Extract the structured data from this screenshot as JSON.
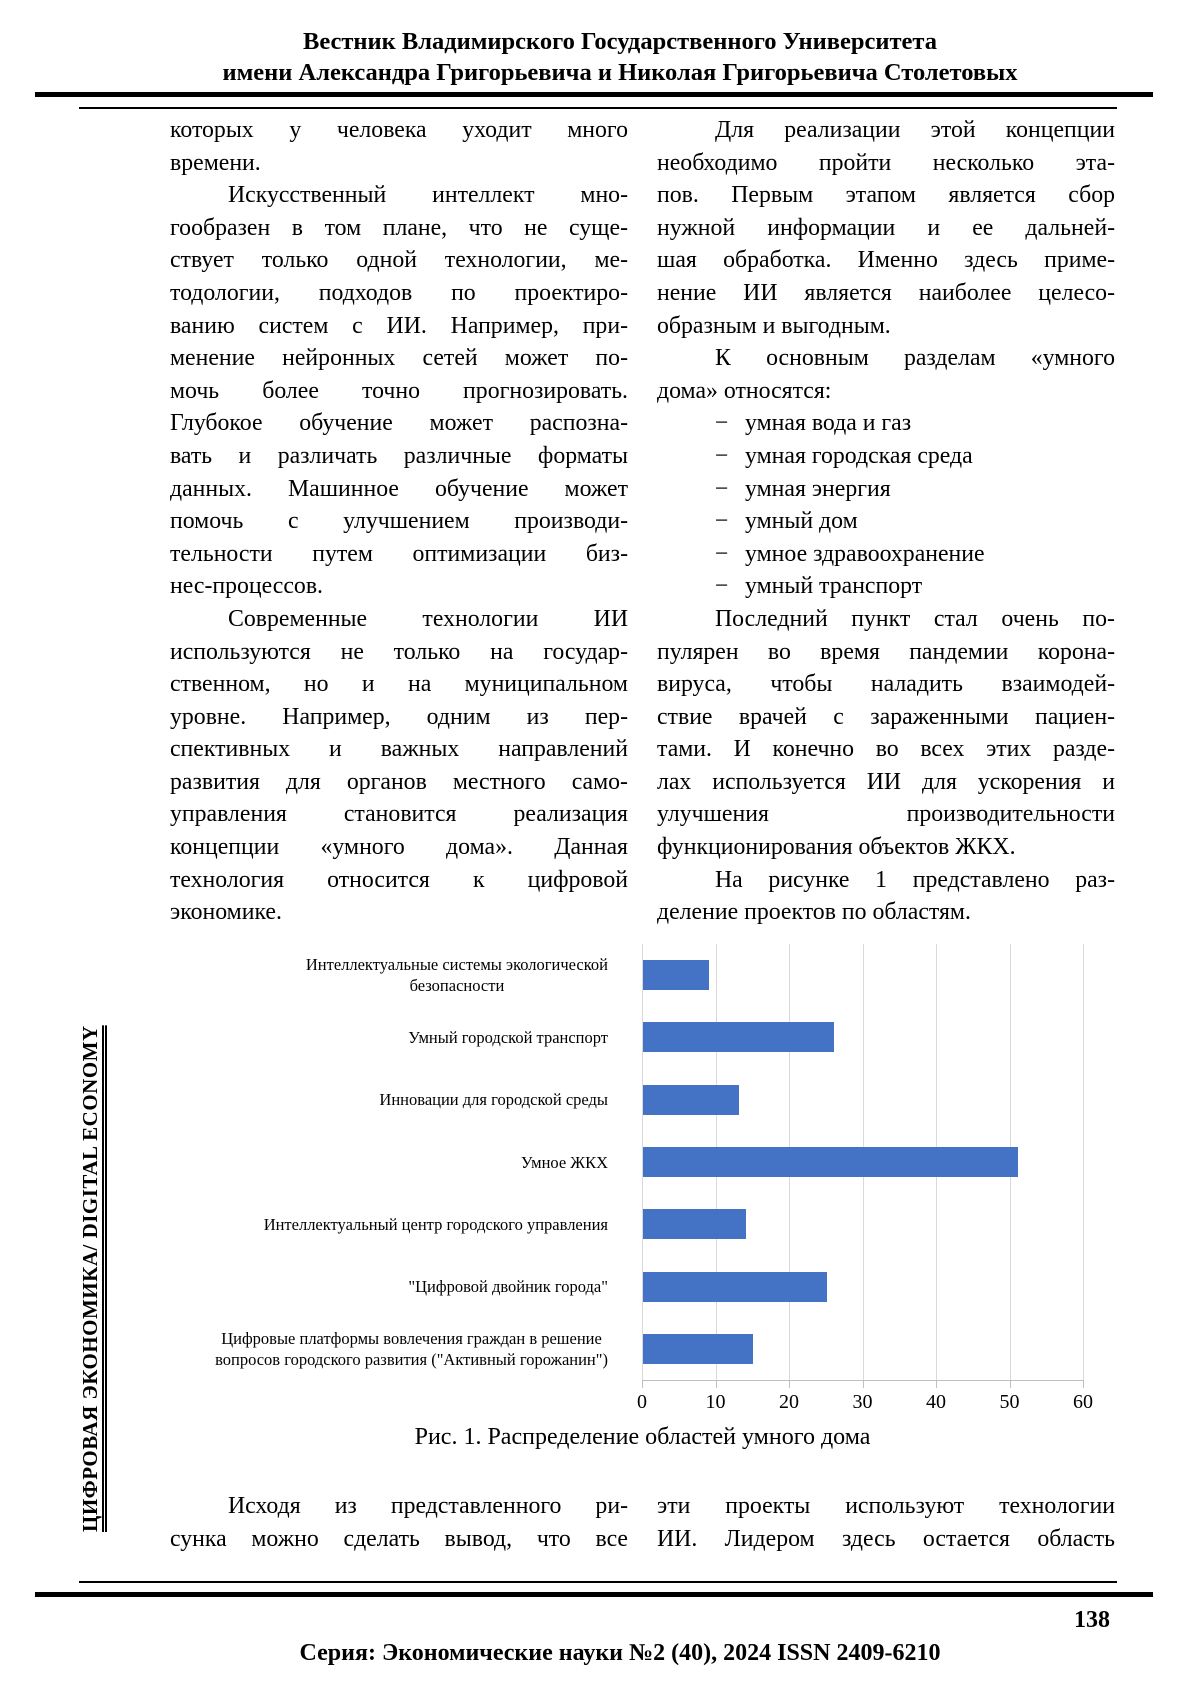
{
  "header": {
    "line1": "Вестник Владимирского Государственного Университета",
    "line2": "имени Александра Григорьевича и Николая Григорьевича Столетовых"
  },
  "sidebar": {
    "label": "ЦИФРОВАЯ ЭКОНОМИКА/ DIGITAL ECONOMY"
  },
  "body_top": {
    "left": {
      "paragraphs": [
        {
          "indent": false,
          "lines": [
            "которых у человека уходит много",
            "времени."
          ]
        },
        {
          "indent": true,
          "lines": [
            "Искусственный интеллект мно-",
            "гообразен в том плане, что не суще-",
            "ствует только одной технологии, ме-",
            "тодологии, подходов по проектиро-",
            "ванию систем с ИИ. Например, при-",
            "менение нейронных сетей может по-",
            "мочь более точно прогнозировать.",
            "Глубокое обучение может распозна-",
            "вать и различать различные форматы",
            "данных. Машинное обучение может",
            "помочь с улучшением производи-",
            "тельности путем оптимизации биз-",
            "нес-процессов."
          ]
        },
        {
          "indent": true,
          "lines": [
            "Современные технологии ИИ",
            "используются не только на государ-",
            "ственном, но и на муниципальном",
            "уровне. Например, одним из пер-",
            "спективных и важных направлений",
            "развития для органов местного само-",
            "управления становится реализация",
            "концепции «умного дома». Данная",
            "технология относится к цифровой",
            "экономике."
          ]
        }
      ]
    },
    "right": {
      "paragraphs": [
        {
          "indent": true,
          "lines": [
            "Для реализации этой концепции",
            "необходимо пройти несколько эта-",
            "пов. Первым этапом является сбор",
            "нужной информации и ее дальней-",
            "шая обработка. Именно здесь приме-",
            "нение ИИ является наиболее целесо-",
            "образным и выгодным."
          ]
        },
        {
          "indent": true,
          "lines": [
            "К основным разделам «умного",
            "дома» относятся:"
          ]
        },
        {
          "marker": "−",
          "items": [
            "умная вода и газ",
            "умная городская среда",
            "умная энергия",
            "умный дом",
            "умное здравоохранение",
            "умный транспорт"
          ]
        },
        {
          "indent": true,
          "lines": [
            "Последний пункт стал очень по-",
            "пулярен во время пандемии корона-",
            "вируса, чтобы наладить взаимодей-",
            "ствие врачей с зараженными пациен-",
            "тами. И конечно во всех этих разде-",
            "лах используется ИИ для ускорения и",
            "улучшения производительности",
            "функционирования объектов ЖКХ."
          ]
        },
        {
          "indent": true,
          "lines": [
            "На рисунке 1 представлено раз-",
            "деление проектов по областям."
          ]
        }
      ]
    }
  },
  "chart_data": {
    "type": "bar",
    "orientation": "horizontal",
    "categories": [
      {
        "lines": [
          "Интеллектуальные системы экологической",
          "безопасности"
        ]
      },
      {
        "lines": [
          "Умный городской транспорт"
        ]
      },
      {
        "lines": [
          "Инновации для городской среды"
        ]
      },
      {
        "lines": [
          "Умное ЖКХ"
        ]
      },
      {
        "lines": [
          "Интеллектуальный центр городского управления"
        ]
      },
      {
        "lines": [
          "\"Цифровой двойник города\""
        ]
      },
      {
        "lines": [
          "Цифровые платформы вовлечения граждан в решение",
          "вопросов городского развития (\"Активный горожанин\")"
        ]
      }
    ],
    "values": [
      9,
      26,
      13,
      51,
      14,
      25,
      15
    ],
    "x_ticks": [
      0,
      10,
      20,
      30,
      40,
      50,
      60
    ],
    "xlim": [
      0,
      60
    ],
    "title": "Рис. 1. Распределение областей умного дома",
    "xlabel": "",
    "ylabel": "",
    "grid": true,
    "legend": false,
    "colors": {
      "bar": "#4472C4",
      "gridline": "#D9D9D9",
      "axis": "#BFBFBF"
    }
  },
  "figure": {
    "caption": "Рис. 1. Распределение областей умного дома"
  },
  "body_bottom": {
    "left": {
      "paragraphs": [
        {
          "indent": true,
          "continues": true,
          "lines": [
            "Исходя из представленного ри-",
            "сунка можно сделать вывод, что все"
          ]
        }
      ]
    },
    "right": {
      "paragraphs": [
        {
          "indent": false,
          "continues": true,
          "lines": [
            "эти проекты используют технологии",
            "ИИ. Лидером здесь остается область"
          ]
        }
      ]
    }
  },
  "footer": {
    "page_number": "138",
    "series": "Серия: Экономические науки №2 (40), 2024 ISSN 2409-6210"
  }
}
